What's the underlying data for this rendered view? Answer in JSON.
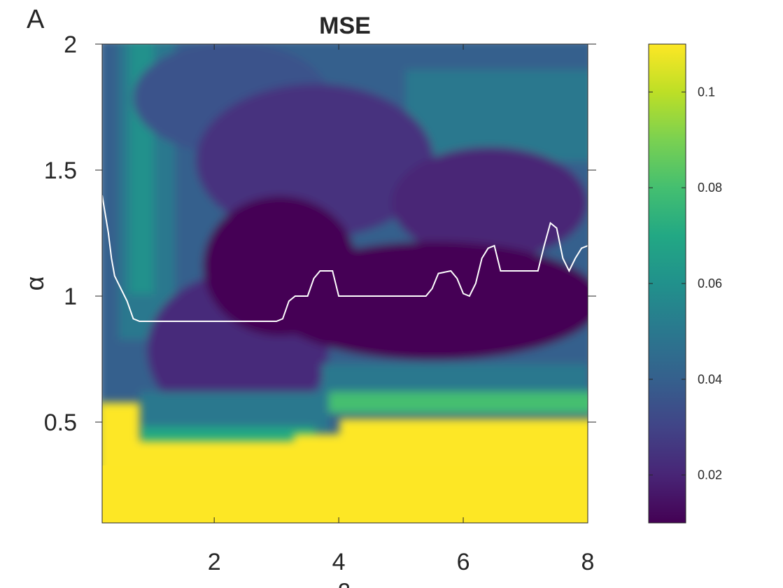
{
  "panel_label": "A",
  "chart_data": {
    "type": "heatmap",
    "title": "MSE",
    "xlabel": "β",
    "ylabel": "α",
    "xlim": [
      0.2,
      8
    ],
    "ylim": [
      0.1,
      2
    ],
    "xticks": [
      2,
      4,
      6,
      8
    ],
    "xtick_labels": [
      "2",
      "4",
      "6",
      "8"
    ],
    "yticks": [
      0.5,
      1,
      1.5,
      2
    ],
    "ytick_labels": [
      "0.5",
      "1",
      "1.5",
      "2"
    ],
    "colormap": "viridis",
    "colorbar": {
      "range": [
        0.01,
        0.11
      ],
      "ticks": [
        0.02,
        0.04,
        0.06,
        0.08,
        0.1
      ],
      "tick_labels": [
        "0.02",
        "0.04",
        "0.06",
        "0.08",
        "0.1"
      ]
    },
    "grid": false,
    "min_curve": {
      "color": "#ffffff",
      "x": [
        0.2,
        0.3,
        0.35,
        0.4,
        0.5,
        0.6,
        0.7,
        0.8,
        1.0,
        1.5,
        2.0,
        2.5,
        3.0,
        3.1,
        3.2,
        3.3,
        3.5,
        3.6,
        3.7,
        3.9,
        4.0,
        4.5,
        5.0,
        5.4,
        5.5,
        5.6,
        5.8,
        5.9,
        6.0,
        6.1,
        6.2,
        6.3,
        6.4,
        6.5,
        6.6,
        6.8,
        7.0,
        7.2,
        7.3,
        7.4,
        7.5,
        7.6,
        7.7,
        7.8,
        7.9,
        8.0
      ],
      "y": [
        1.4,
        1.25,
        1.15,
        1.08,
        1.03,
        0.98,
        0.91,
        0.9,
        0.9,
        0.9,
        0.9,
        0.9,
        0.9,
        0.91,
        0.98,
        1.0,
        1.0,
        1.07,
        1.1,
        1.1,
        1.0,
        1.0,
        1.0,
        1.0,
        1.03,
        1.09,
        1.1,
        1.07,
        1.01,
        1.0,
        1.05,
        1.15,
        1.19,
        1.2,
        1.1,
        1.1,
        1.1,
        1.1,
        1.2,
        1.29,
        1.27,
        1.15,
        1.1,
        1.15,
        1.19,
        1.2
      ]
    }
  }
}
